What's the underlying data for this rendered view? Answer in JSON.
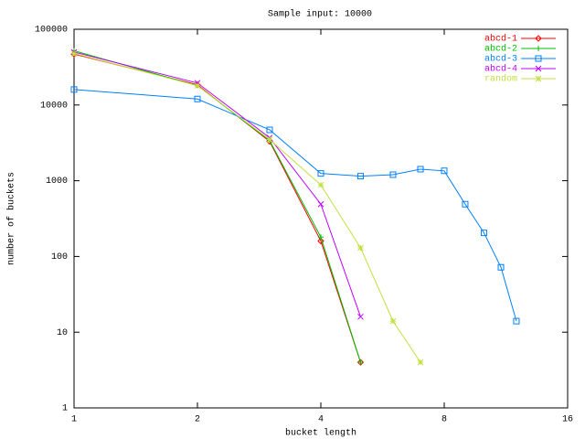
{
  "chart_data": {
    "type": "line",
    "title": "Sample input: 10000",
    "x_label": "bucket length",
    "y_label": "number of buckets",
    "x_log_base": 2,
    "y_log_base": 10,
    "xlim": [
      1,
      16
    ],
    "xticks": [
      1,
      2,
      4,
      8,
      16
    ],
    "ylim": [
      1,
      100000
    ],
    "yticks": [
      1,
      10,
      100,
      1000,
      10000,
      100000
    ],
    "legend": "top-right",
    "series": [
      {
        "name": "abcd-1",
        "color": "#ff0000",
        "marker": "diamond",
        "x": [
          1,
          2,
          3,
          4,
          5
        ],
        "values": [
          47000,
          18500,
          3300,
          160,
          4
        ]
      },
      {
        "name": "abcd-2",
        "color": "#00c000",
        "marker": "plus",
        "x": [
          1,
          2,
          3,
          4,
          5
        ],
        "values": [
          52000,
          18000,
          3400,
          180,
          4
        ]
      },
      {
        "name": "abcd-3",
        "color": "#0080ff",
        "marker": "square",
        "x": [
          1,
          2,
          3,
          4,
          5,
          6,
          7,
          8,
          9,
          10,
          11,
          12
        ],
        "values": [
          16000,
          12000,
          4700,
          1250,
          1150,
          1200,
          1420,
          1350,
          490,
          205,
          72,
          14
        ]
      },
      {
        "name": "abcd-4",
        "color": "#c000ff",
        "marker": "cross",
        "x": [
          1,
          2,
          3,
          4,
          5
        ],
        "values": [
          50000,
          19500,
          3700,
          490,
          16
        ]
      },
      {
        "name": "random",
        "color": "#c0e040",
        "marker": "star",
        "x": [
          1,
          2,
          3,
          4,
          5,
          6,
          7
        ],
        "values": [
          48000,
          18000,
          3500,
          880,
          130,
          14,
          4
        ]
      }
    ]
  }
}
